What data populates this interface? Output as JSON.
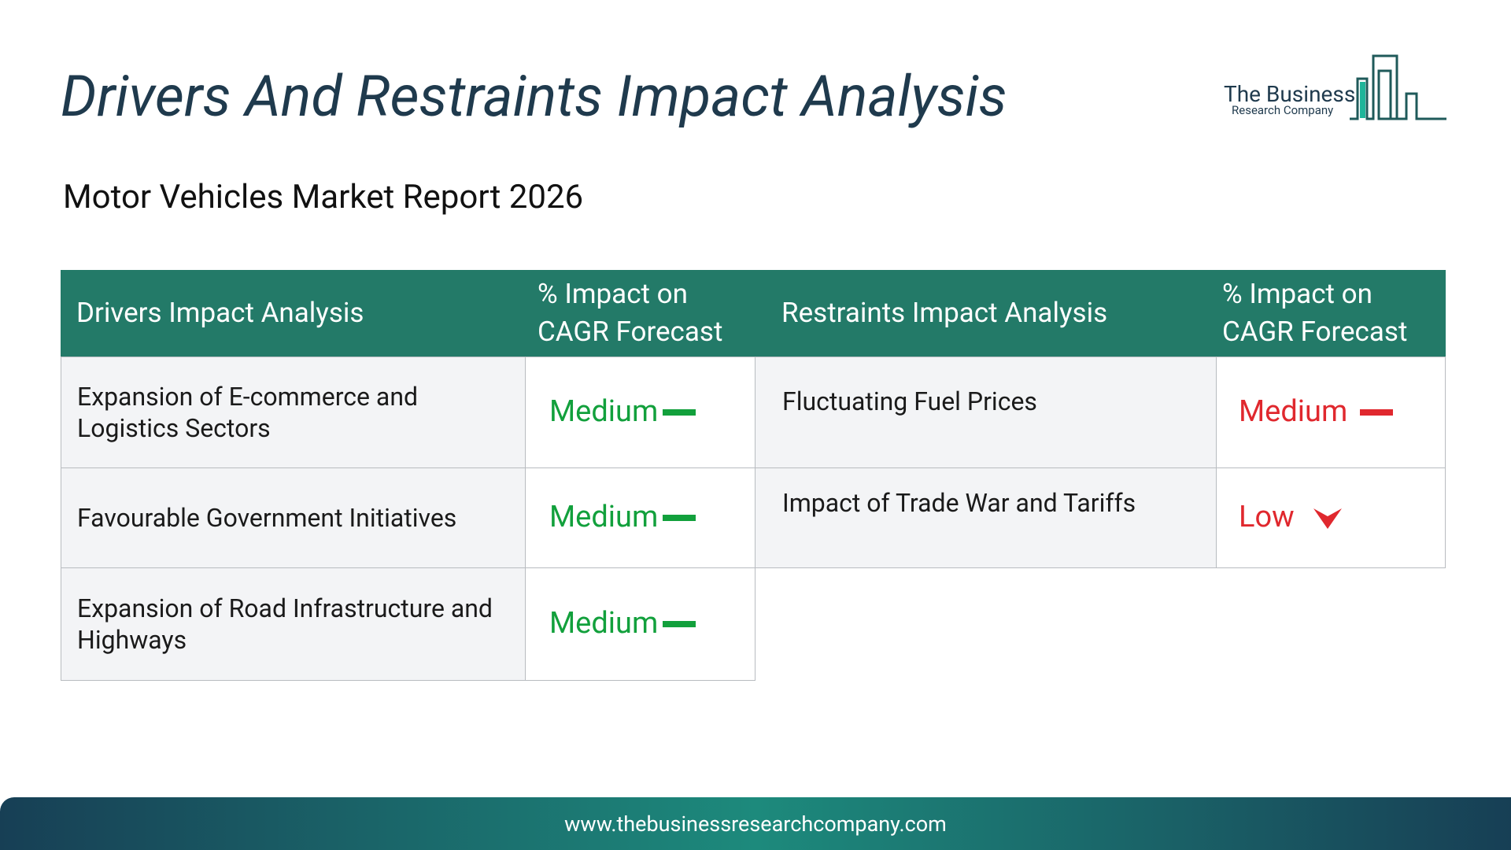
{
  "header": {
    "title": "Drivers And Restraints Impact Analysis",
    "subtitle": "Motor Vehicles Market Report 2026",
    "logo": {
      "line1": "The Business",
      "line2": "Research Company"
    }
  },
  "drivers": {
    "headers": [
      "Drivers Impact Analysis",
      "% Impact on CAGR Forecast"
    ],
    "rows": [
      [
        "Expansion of E-commerce and Logistics Sectors",
        "Medium"
      ],
      [
        "Favourable Government Initiatives",
        "Medium"
      ],
      [
        "Expansion of Road Infrastructure and Highways",
        "Medium"
      ]
    ]
  },
  "restraints": {
    "headers": [
      "Restraints Impact Analysis",
      "% Impact on CAGR Forecast"
    ],
    "rows": [
      [
        "Fluctuating Fuel Prices",
        "Medium"
      ],
      [
        "Impact of Trade War and Tariffs",
        "Low"
      ]
    ]
  },
  "footer": {
    "url": "www.thebusinessresearchcompany.com"
  }
}
